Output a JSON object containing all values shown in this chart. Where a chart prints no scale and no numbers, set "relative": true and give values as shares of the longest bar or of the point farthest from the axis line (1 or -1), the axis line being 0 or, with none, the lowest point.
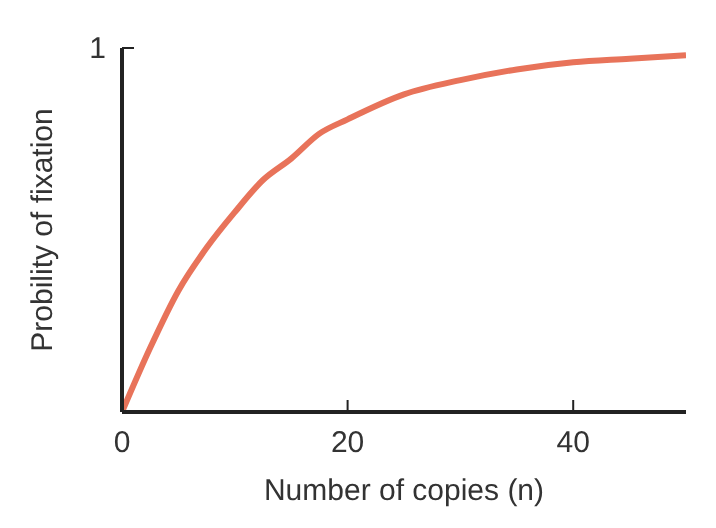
{
  "chart_data": {
    "type": "line",
    "xlabel": "Number of copies (n)",
    "ylabel": "Probility of fixation",
    "relative": true,
    "annotations": [
      "1"
    ],
    "x": [
      0,
      2.5,
      5,
      7.5,
      10,
      12.5,
      15,
      17.5,
      20,
      25,
      30,
      35,
      40,
      45,
      50
    ],
    "series": [
      {
        "color": "#e8735a",
        "values": [
          0,
          0.18,
          0.34,
          0.46,
          0.56,
          0.65,
          0.71,
          0.78,
          0.82,
          0.89,
          0.93,
          0.96,
          0.98,
          0.99,
          1
        ]
      }
    ],
    "xlim": [
      0,
      50
    ],
    "xticks": [
      0,
      20,
      40
    ],
    "grid": false,
    "legend": false,
    "marker": "none",
    "line_style": "solid"
  }
}
